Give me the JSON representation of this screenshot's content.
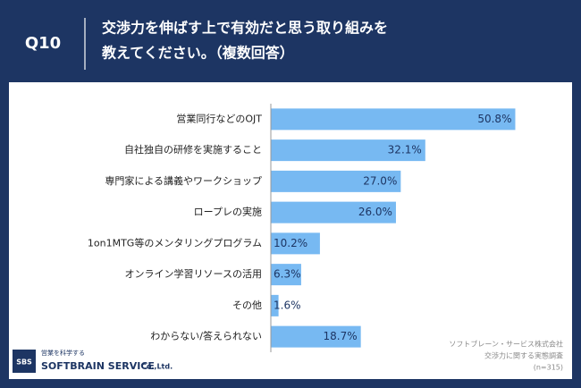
{
  "header": {
    "question": "Q10",
    "title_lines": [
      "交渉力を伸ばす上で有効だと思う取り組みを",
      "教えてください。（複数回答）"
    ]
  },
  "chart_data": {
    "type": "bar",
    "orientation": "horizontal",
    "categories": [
      "営業同行などのOJT",
      "自社独自の研修を実施すること",
      "専門家による講義やワークショップ",
      "ロープレの実施",
      "1on1MTG等のメンタリングプログラム",
      "オンライン学習リソースの活用",
      "その他",
      "わからない/答えられない"
    ],
    "values": [
      50.8,
      32.1,
      27.0,
      26.0,
      10.2,
      6.3,
      1.6,
      18.7
    ],
    "value_labels": [
      "50.8%",
      "32.1%",
      "27.0%",
      "26.0%",
      "10.2%",
      "6.3%",
      "1.6%",
      "18.7%"
    ],
    "color": "#77b9f2",
    "xlim": [
      0,
      60
    ]
  },
  "footer": {
    "source_lines": [
      "ソフトブレーン・サービス株式会社",
      "交渉力に関する実態調査",
      "(n=315)"
    ]
  },
  "logo": {
    "mark": "SBS",
    "tagline": "営業を科学する",
    "name": "SOFTBRAIN SERVICE",
    "suffix": "Co.,Ltd."
  }
}
